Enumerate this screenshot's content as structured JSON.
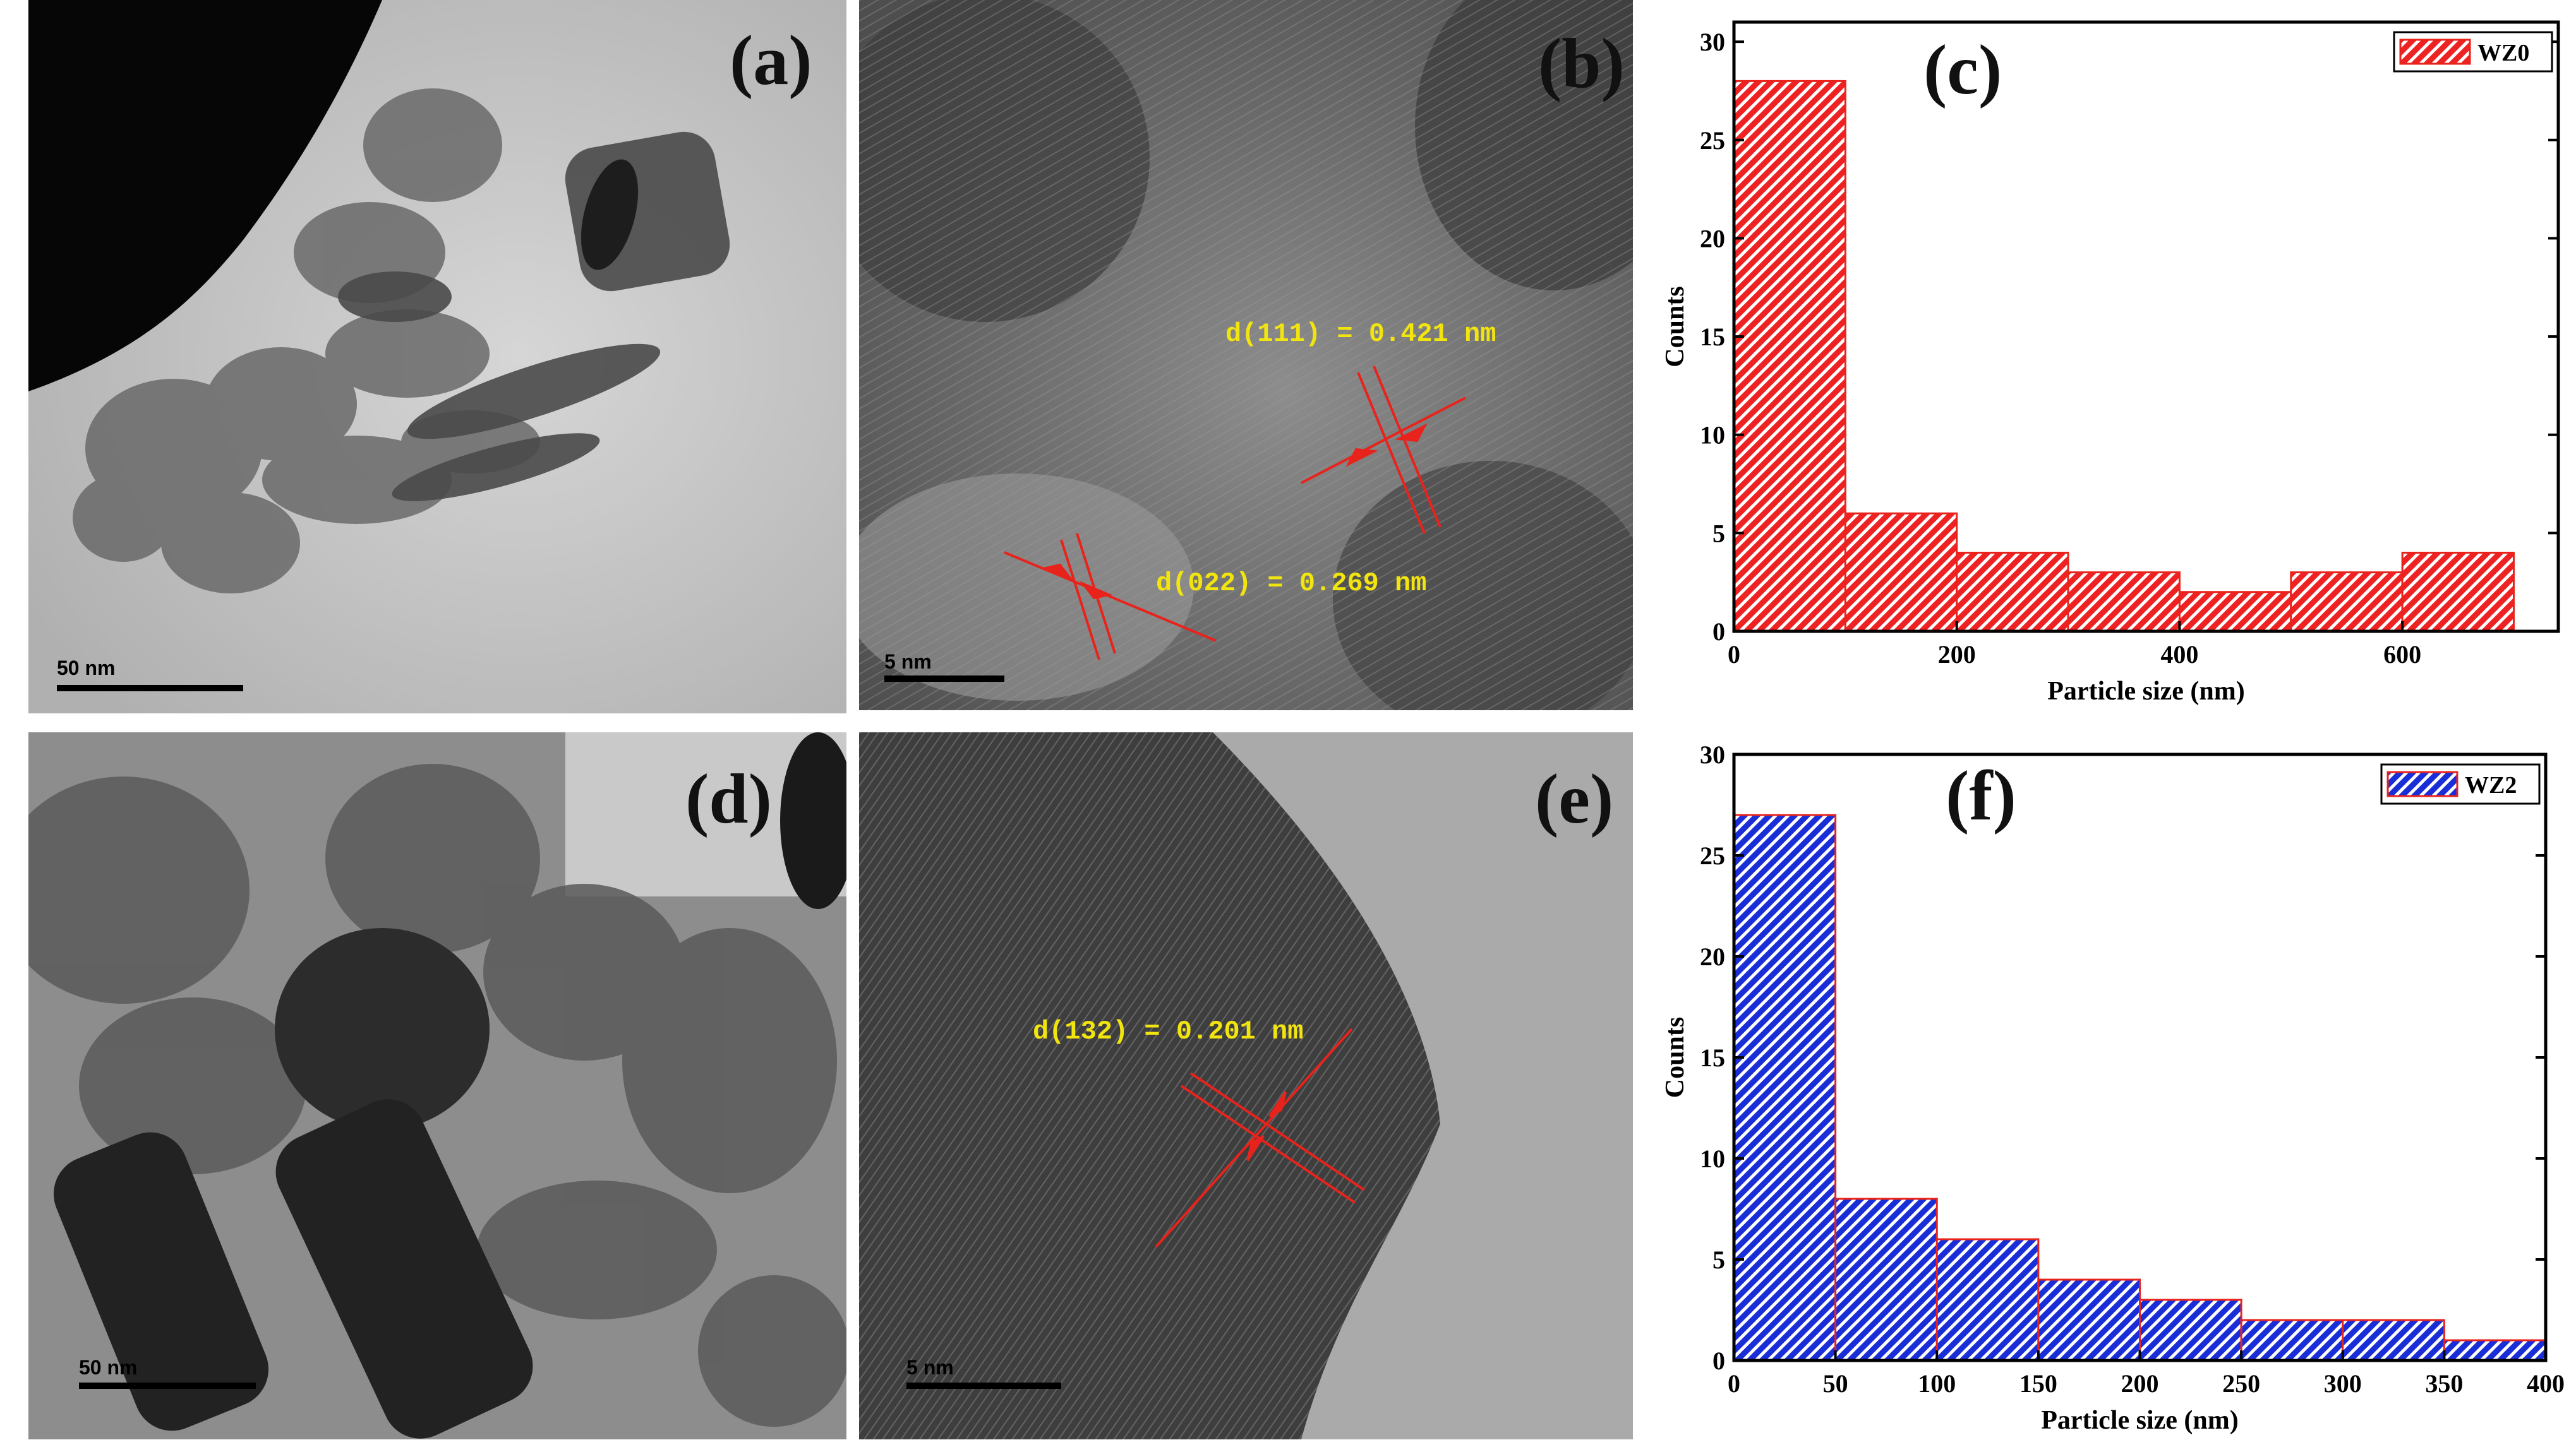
{
  "figure": {
    "panels": [
      {
        "id": "a",
        "label": "(a)",
        "scale": "50 nm"
      },
      {
        "id": "b",
        "label": "(b)",
        "scale": "5 nm",
        "annotations": [
          "d(111) = 0.421 nm",
          "d(022) = 0.269 nm"
        ]
      },
      {
        "id": "c",
        "label": "(c)"
      },
      {
        "id": "d",
        "label": "(d)",
        "scale": "50 nm"
      },
      {
        "id": "e",
        "label": "(e)",
        "scale": "5 nm",
        "annotations": [
          "d(132) = 0.201 nm"
        ]
      },
      {
        "id": "f",
        "label": "(f)"
      }
    ]
  },
  "chart_data": [
    {
      "type": "bar",
      "panel": "c",
      "series": [
        {
          "name": "WZ0",
          "color": "#ee2222",
          "pattern": "diagonal-hatch",
          "bins": [
            [
              0,
              100
            ],
            [
              100,
              200
            ],
            [
              200,
              300
            ],
            [
              300,
              400
            ],
            [
              400,
              500
            ],
            [
              500,
              600
            ],
            [
              600,
              700
            ]
          ],
          "values": [
            28,
            6,
            4,
            3,
            2,
            3,
            4
          ]
        }
      ],
      "xlabel": "Particle size (nm)",
      "ylabel": "Counts",
      "xlim": [
        0,
        740
      ],
      "ylim": [
        0,
        31
      ],
      "xticks": [
        0,
        200,
        400,
        600
      ],
      "yticks": [
        0,
        5,
        10,
        15,
        20,
        25,
        30
      ],
      "legend": "top-right",
      "grid": false
    },
    {
      "type": "bar",
      "panel": "f",
      "series": [
        {
          "name": "WZ2",
          "color": "#1a2ed8",
          "pattern": "diagonal-hatch",
          "bins": [
            [
              0,
              50
            ],
            [
              50,
              100
            ],
            [
              100,
              150
            ],
            [
              150,
              200
            ],
            [
              200,
              250
            ],
            [
              250,
              300
            ],
            [
              300,
              350
            ],
            [
              350,
              400
            ]
          ],
          "values": [
            27,
            8,
            6,
            4,
            3,
            2,
            2,
            1
          ]
        }
      ],
      "xlabel": "Particle size (nm)",
      "ylabel": "Counts",
      "xlim": [
        0,
        400
      ],
      "ylim": [
        0,
        30
      ],
      "xticks": [
        0,
        50,
        100,
        150,
        200,
        250,
        300,
        350,
        400
      ],
      "yticks": [
        0,
        5,
        10,
        15,
        20,
        25,
        30
      ],
      "legend": "top-right",
      "grid": false
    }
  ]
}
